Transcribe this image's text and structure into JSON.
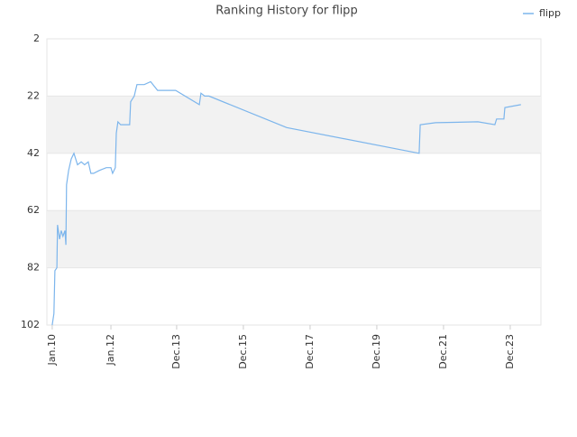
{
  "chart_data": {
    "type": "line",
    "title": "Ranking History for flipp",
    "x": [
      2010.19,
      2010.24,
      2010.27,
      2010.33,
      2010.35,
      2010.41,
      2010.46,
      2010.51,
      2010.57,
      2010.6,
      2010.62,
      2010.68,
      2010.76,
      2010.84,
      2010.95,
      2011.06,
      2011.16,
      2011.27,
      2011.35,
      2011.43,
      2011.6,
      2011.81,
      2011.95,
      2012.0,
      2012.08,
      2012.11,
      2012.16,
      2012.24,
      2012.33,
      2012.51,
      2012.54,
      2012.65,
      2012.73,
      2012.95,
      2013.14,
      2013.35,
      2013.89,
      2014.6,
      2014.65,
      2014.76,
      2014.89,
      2017.22,
      2021.19,
      2021.22,
      2021.68,
      2022.95,
      2023.46,
      2023.51,
      2023.73,
      2023.76,
      2024.24
    ],
    "series": [
      {
        "name": "flipp",
        "color": "#7cb5ec",
        "values": [
          102,
          98,
          83,
          82,
          67,
          72,
          69,
          71,
          69,
          74,
          53,
          48,
          44,
          42,
          46,
          45,
          46,
          45,
          49,
          49,
          48,
          47,
          47,
          49,
          47,
          35,
          31,
          32,
          32,
          32,
          24,
          22,
          18,
          18,
          17,
          20,
          20,
          25,
          21,
          22,
          22,
          33,
          42,
          32,
          31.3,
          31,
          32,
          30,
          30,
          26,
          25
        ]
      }
    ],
    "xlim": [
      2010.03,
      2024.84
    ],
    "xticks": [
      {
        "value": 2010.19,
        "label": "Jan.10"
      },
      {
        "value": 2011.95,
        "label": "Jan.12"
      },
      {
        "value": 2013.92,
        "label": "Dec.13"
      },
      {
        "value": 2015.92,
        "label": "Dec.15"
      },
      {
        "value": 2017.92,
        "label": "Dec.17"
      },
      {
        "value": 2019.92,
        "label": "Dec.19"
      },
      {
        "value": 2021.92,
        "label": "Dec.21"
      },
      {
        "value": 2023.92,
        "label": "Dec.23"
      }
    ],
    "ylim": [
      102,
      2
    ],
    "yticks": [
      2,
      22,
      42,
      62,
      82,
      102
    ],
    "grid": true,
    "legend": "top-right"
  }
}
